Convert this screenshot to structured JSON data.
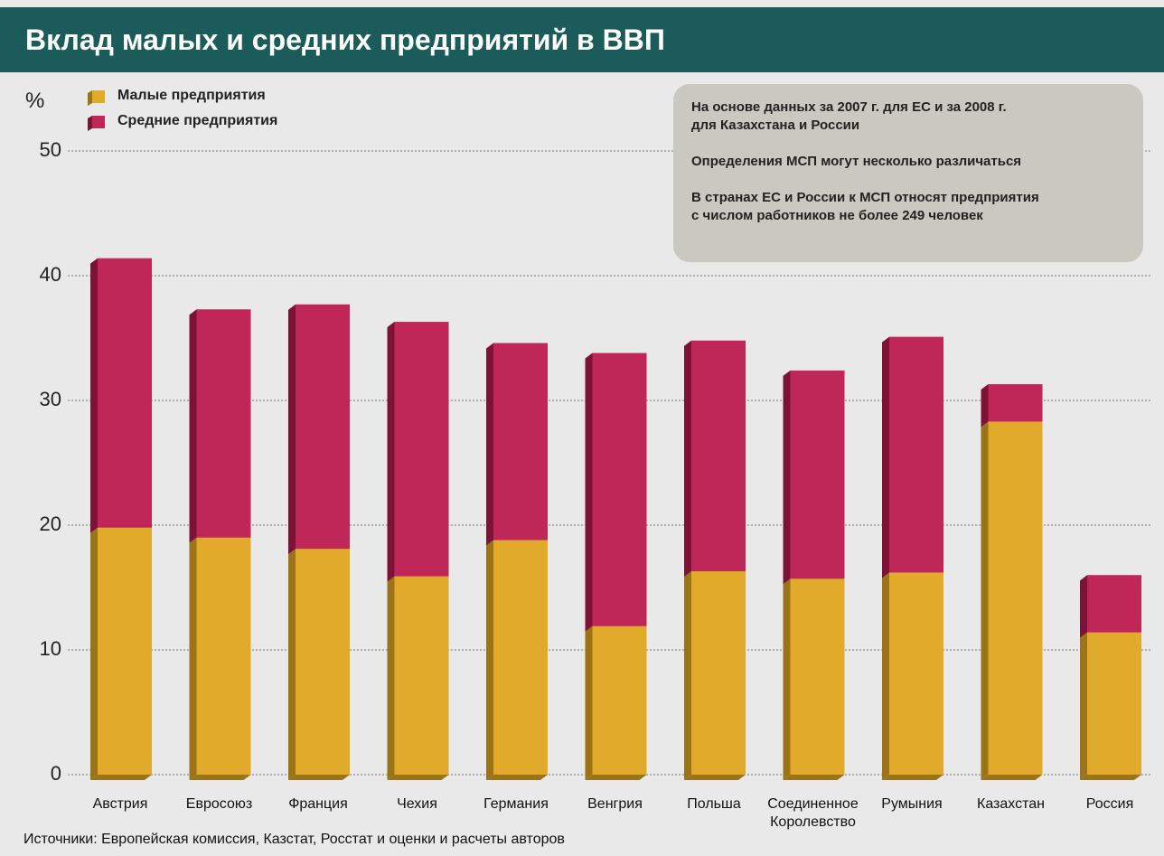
{
  "chart_data": {
    "type": "stacked_bar",
    "title": "Вклад малых и средних предприятий в ВВП",
    "ylabel": "%",
    "categories": [
      "Австрия",
      "Евросоюз",
      "Франция",
      "Чехия",
      "Германия",
      "Венгрия",
      "Польша",
      "Соединенное Королевство",
      "Румыния",
      "Казахстан",
      "Россия"
    ],
    "series": [
      {
        "name": "Малые предприятия",
        "color": "#e2aa2a",
        "side_color": "#9c7418",
        "values": [
          19.8,
          19.0,
          18.1,
          15.9,
          18.8,
          11.9,
          16.3,
          15.7,
          16.2,
          28.3,
          11.4
        ]
      },
      {
        "name": "Средние предприятия",
        "color": "#bf2758",
        "side_color": "#7c1236",
        "values": [
          21.6,
          18.3,
          19.6,
          20.4,
          15.8,
          21.9,
          18.5,
          16.7,
          18.9,
          3.0,
          4.6
        ]
      }
    ],
    "ylim": [
      0,
      50
    ],
    "yticks": [
      0,
      10,
      20,
      30,
      40,
      50
    ],
    "grid": true,
    "notes": [
      [
        "На основе данных за 2007 г. для ЕС и за 2008 г.",
        "для Казахстана и России"
      ],
      [
        "Определения МСП могут несколько различаться"
      ],
      [
        "В странах ЕС и России к МСП относят предприятия",
        "с числом работников не более 249 человек"
      ]
    ],
    "source": "Источники: Европейская комиссия, Казстат, Росстат и оценки и расчеты авторов"
  }
}
